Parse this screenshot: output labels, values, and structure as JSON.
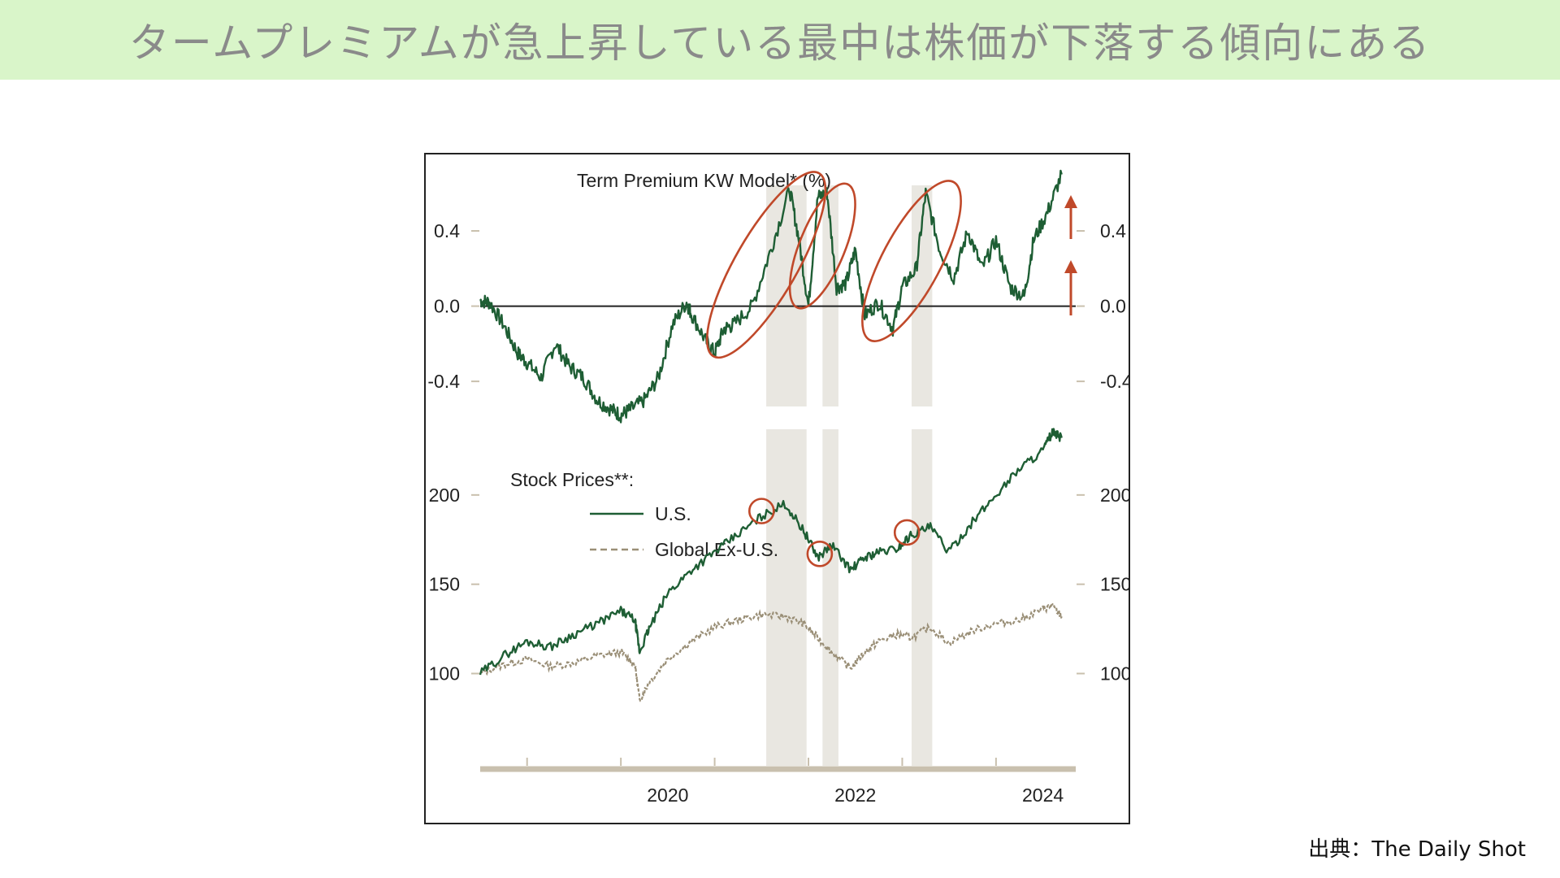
{
  "page_title": "タームプレミアムが急上昇している最中は株価が下落する傾向にある",
  "source": "出典：The Daily Shot",
  "colors": {
    "banner_bg": "#d9f5c9",
    "us_line": "#1e5e34",
    "global_line": "#9a8f77",
    "highlight": "#c0492a",
    "shade": "#e9e7e1",
    "axis_base": "#c9c0ae"
  },
  "chart_data": [
    {
      "type": "line",
      "title": "Term Premium KW Model* (%)",
      "y_ticks": [
        "0.4",
        "0.0",
        "-0.4"
      ],
      "ylim": [
        -0.62,
        0.72
      ],
      "xlim": [
        2018.5,
        2024.85
      ],
      "reference_line": 0.0,
      "series": [
        {
          "name": "Term Premium",
          "x": [
            2018.5,
            2018.6,
            2018.75,
            2018.9,
            2019.0,
            2019.15,
            2019.3,
            2019.45,
            2019.6,
            2019.75,
            2019.9,
            2020.0,
            2020.1,
            2020.25,
            2020.4,
            2020.55,
            2020.7,
            2020.75,
            2020.9,
            2021.0,
            2021.1,
            2021.2,
            2021.4,
            2021.6,
            2021.8,
            2021.9,
            2022.0,
            2022.1,
            2022.2,
            2022.3,
            2022.4,
            2022.5,
            2022.6,
            2022.75,
            2022.9,
            2023.0,
            2023.15,
            2023.25,
            2023.4,
            2023.55,
            2023.7,
            2023.85,
            2024.0,
            2024.15,
            2024.3,
            2024.4,
            2024.55,
            2024.7
          ],
          "y": [
            0.03,
            0.02,
            -0.1,
            -0.25,
            -0.3,
            -0.38,
            -0.2,
            -0.32,
            -0.38,
            -0.5,
            -0.55,
            -0.58,
            -0.55,
            -0.5,
            -0.38,
            -0.1,
            0.02,
            -0.04,
            -0.18,
            -0.25,
            -0.12,
            -0.1,
            0.0,
            0.3,
            0.62,
            0.35,
            0.0,
            0.58,
            0.6,
            0.1,
            0.12,
            0.3,
            -0.05,
            0.02,
            -0.12,
            0.1,
            0.2,
            0.6,
            0.3,
            0.15,
            0.4,
            0.2,
            0.35,
            0.1,
            0.05,
            0.35,
            0.5,
            0.7
          ]
        }
      ],
      "highlights": [
        {
          "kind": "ellipse",
          "x_center": 2021.55,
          "y_center": 0.22
        },
        {
          "kind": "ellipse",
          "x_center": 2022.15,
          "y_center": 0.32
        },
        {
          "kind": "ellipse",
          "x_center": 2023.1,
          "y_center": 0.24
        }
      ],
      "arrows": 2
    },
    {
      "type": "line",
      "title": "Stock Prices**:",
      "y_ticks": [
        "200",
        "150",
        "100"
      ],
      "ylim": [
        72,
        245
      ],
      "xlim": [
        2018.5,
        2024.85
      ],
      "x_ticks": [
        "2020",
        "2022",
        "2024"
      ],
      "legend_position": "top-left",
      "series": [
        {
          "name": "U.S.",
          "x": [
            2018.5,
            2018.75,
            2019.0,
            2019.25,
            2019.5,
            2019.75,
            2020.0,
            2020.15,
            2020.2,
            2020.3,
            2020.5,
            2020.75,
            2021.0,
            2021.25,
            2021.5,
            2021.75,
            2021.95,
            2022.1,
            2022.25,
            2022.45,
            2022.6,
            2022.75,
            2022.95,
            2023.1,
            2023.3,
            2023.5,
            2023.75,
            2024.0,
            2024.25,
            2024.5,
            2024.6,
            2024.7
          ],
          "y": [
            100,
            110,
            118,
            115,
            122,
            128,
            135,
            130,
            112,
            125,
            145,
            158,
            168,
            178,
            188,
            195,
            180,
            165,
            172,
            158,
            165,
            168,
            170,
            178,
            182,
            168,
            185,
            200,
            215,
            225,
            235,
            232
          ]
        },
        {
          "name": "Global Ex-U.S.",
          "x": [
            2018.5,
            2018.75,
            2019.0,
            2019.25,
            2019.5,
            2019.75,
            2020.0,
            2020.15,
            2020.2,
            2020.3,
            2020.5,
            2020.75,
            2021.0,
            2021.25,
            2021.5,
            2021.75,
            2021.95,
            2022.1,
            2022.25,
            2022.45,
            2022.6,
            2022.75,
            2022.95,
            2023.1,
            2023.3,
            2023.5,
            2023.75,
            2024.0,
            2024.25,
            2024.5,
            2024.6,
            2024.7
          ],
          "y": [
            100,
            105,
            108,
            104,
            106,
            110,
            112,
            105,
            85,
            95,
            108,
            118,
            126,
            130,
            133,
            132,
            128,
            120,
            112,
            103,
            112,
            118,
            122,
            120,
            126,
            117,
            124,
            128,
            130,
            136,
            138,
            132
          ]
        }
      ],
      "highlights": [
        {
          "kind": "circle",
          "x": 2021.5,
          "y": 191
        },
        {
          "kind": "circle",
          "x": 2022.12,
          "y": 167
        },
        {
          "kind": "circle",
          "x": 2023.05,
          "y": 179
        }
      ],
      "shaded_periods": [
        [
          2021.55,
          2021.98
        ],
        [
          2022.15,
          2022.32
        ],
        [
          2023.1,
          2023.32
        ]
      ]
    }
  ]
}
